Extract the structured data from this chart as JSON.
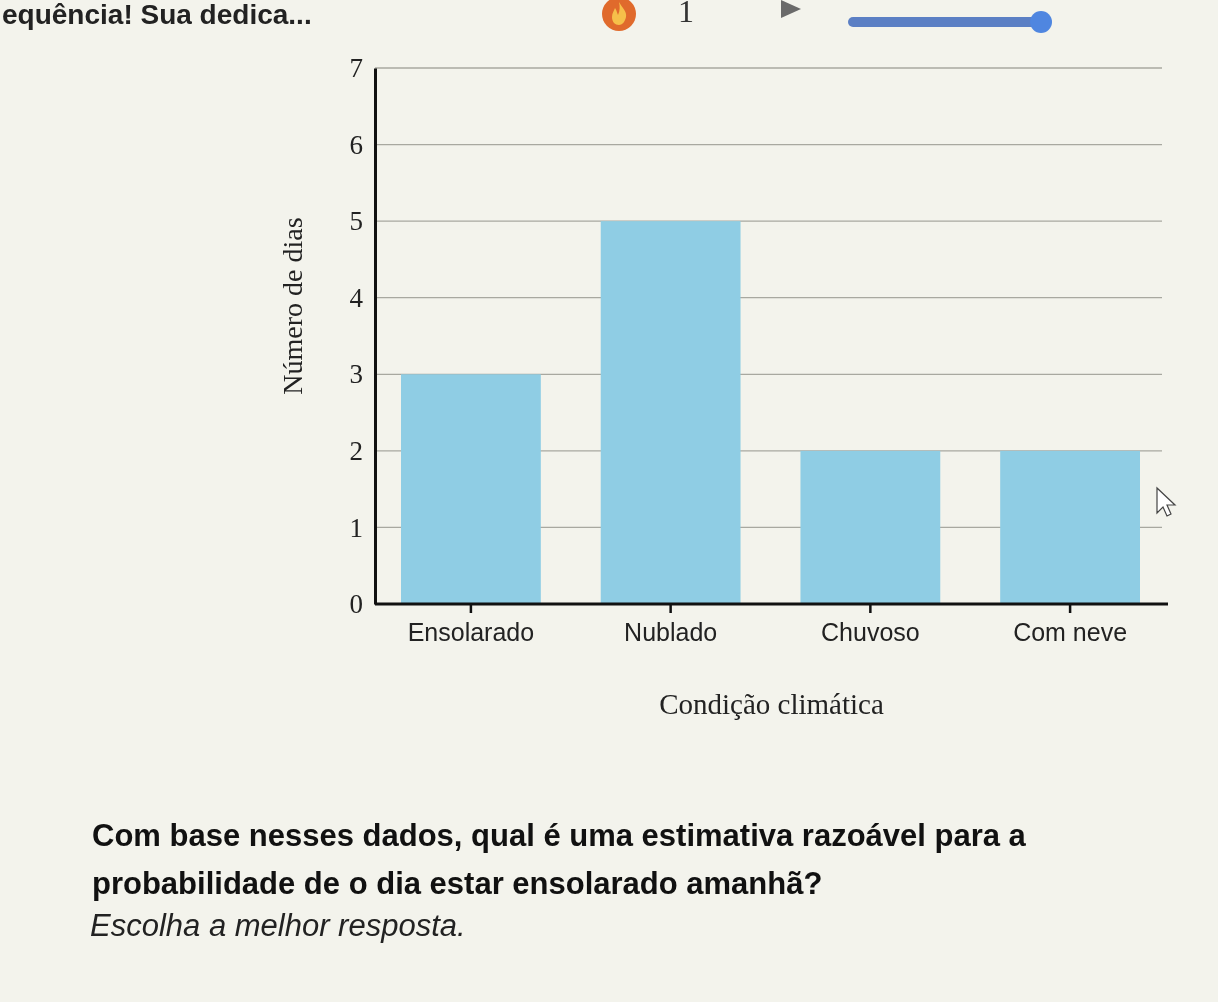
{
  "chart_data": {
    "type": "bar",
    "categories": [
      "Ensolarado",
      "Nublado",
      "Chuvoso",
      "Com neve"
    ],
    "values": [
      3,
      5,
      2,
      2
    ],
    "color": "#8fcde4",
    "ylim": [
      0,
      7
    ],
    "yticks": [
      0,
      1,
      2,
      3,
      4,
      5,
      6,
      7
    ],
    "grid": "y",
    "xlabel": "Condição climática",
    "ylabel": "Número de dias",
    "annotations": [
      "equência! Sua dedica...",
      "1",
      "Com base nesses dados, qual é uma estimativa razoável para a probabilidade de o dia estar ensolarado amanhã?",
      "Escolha a melhor resposta."
    ]
  }
}
